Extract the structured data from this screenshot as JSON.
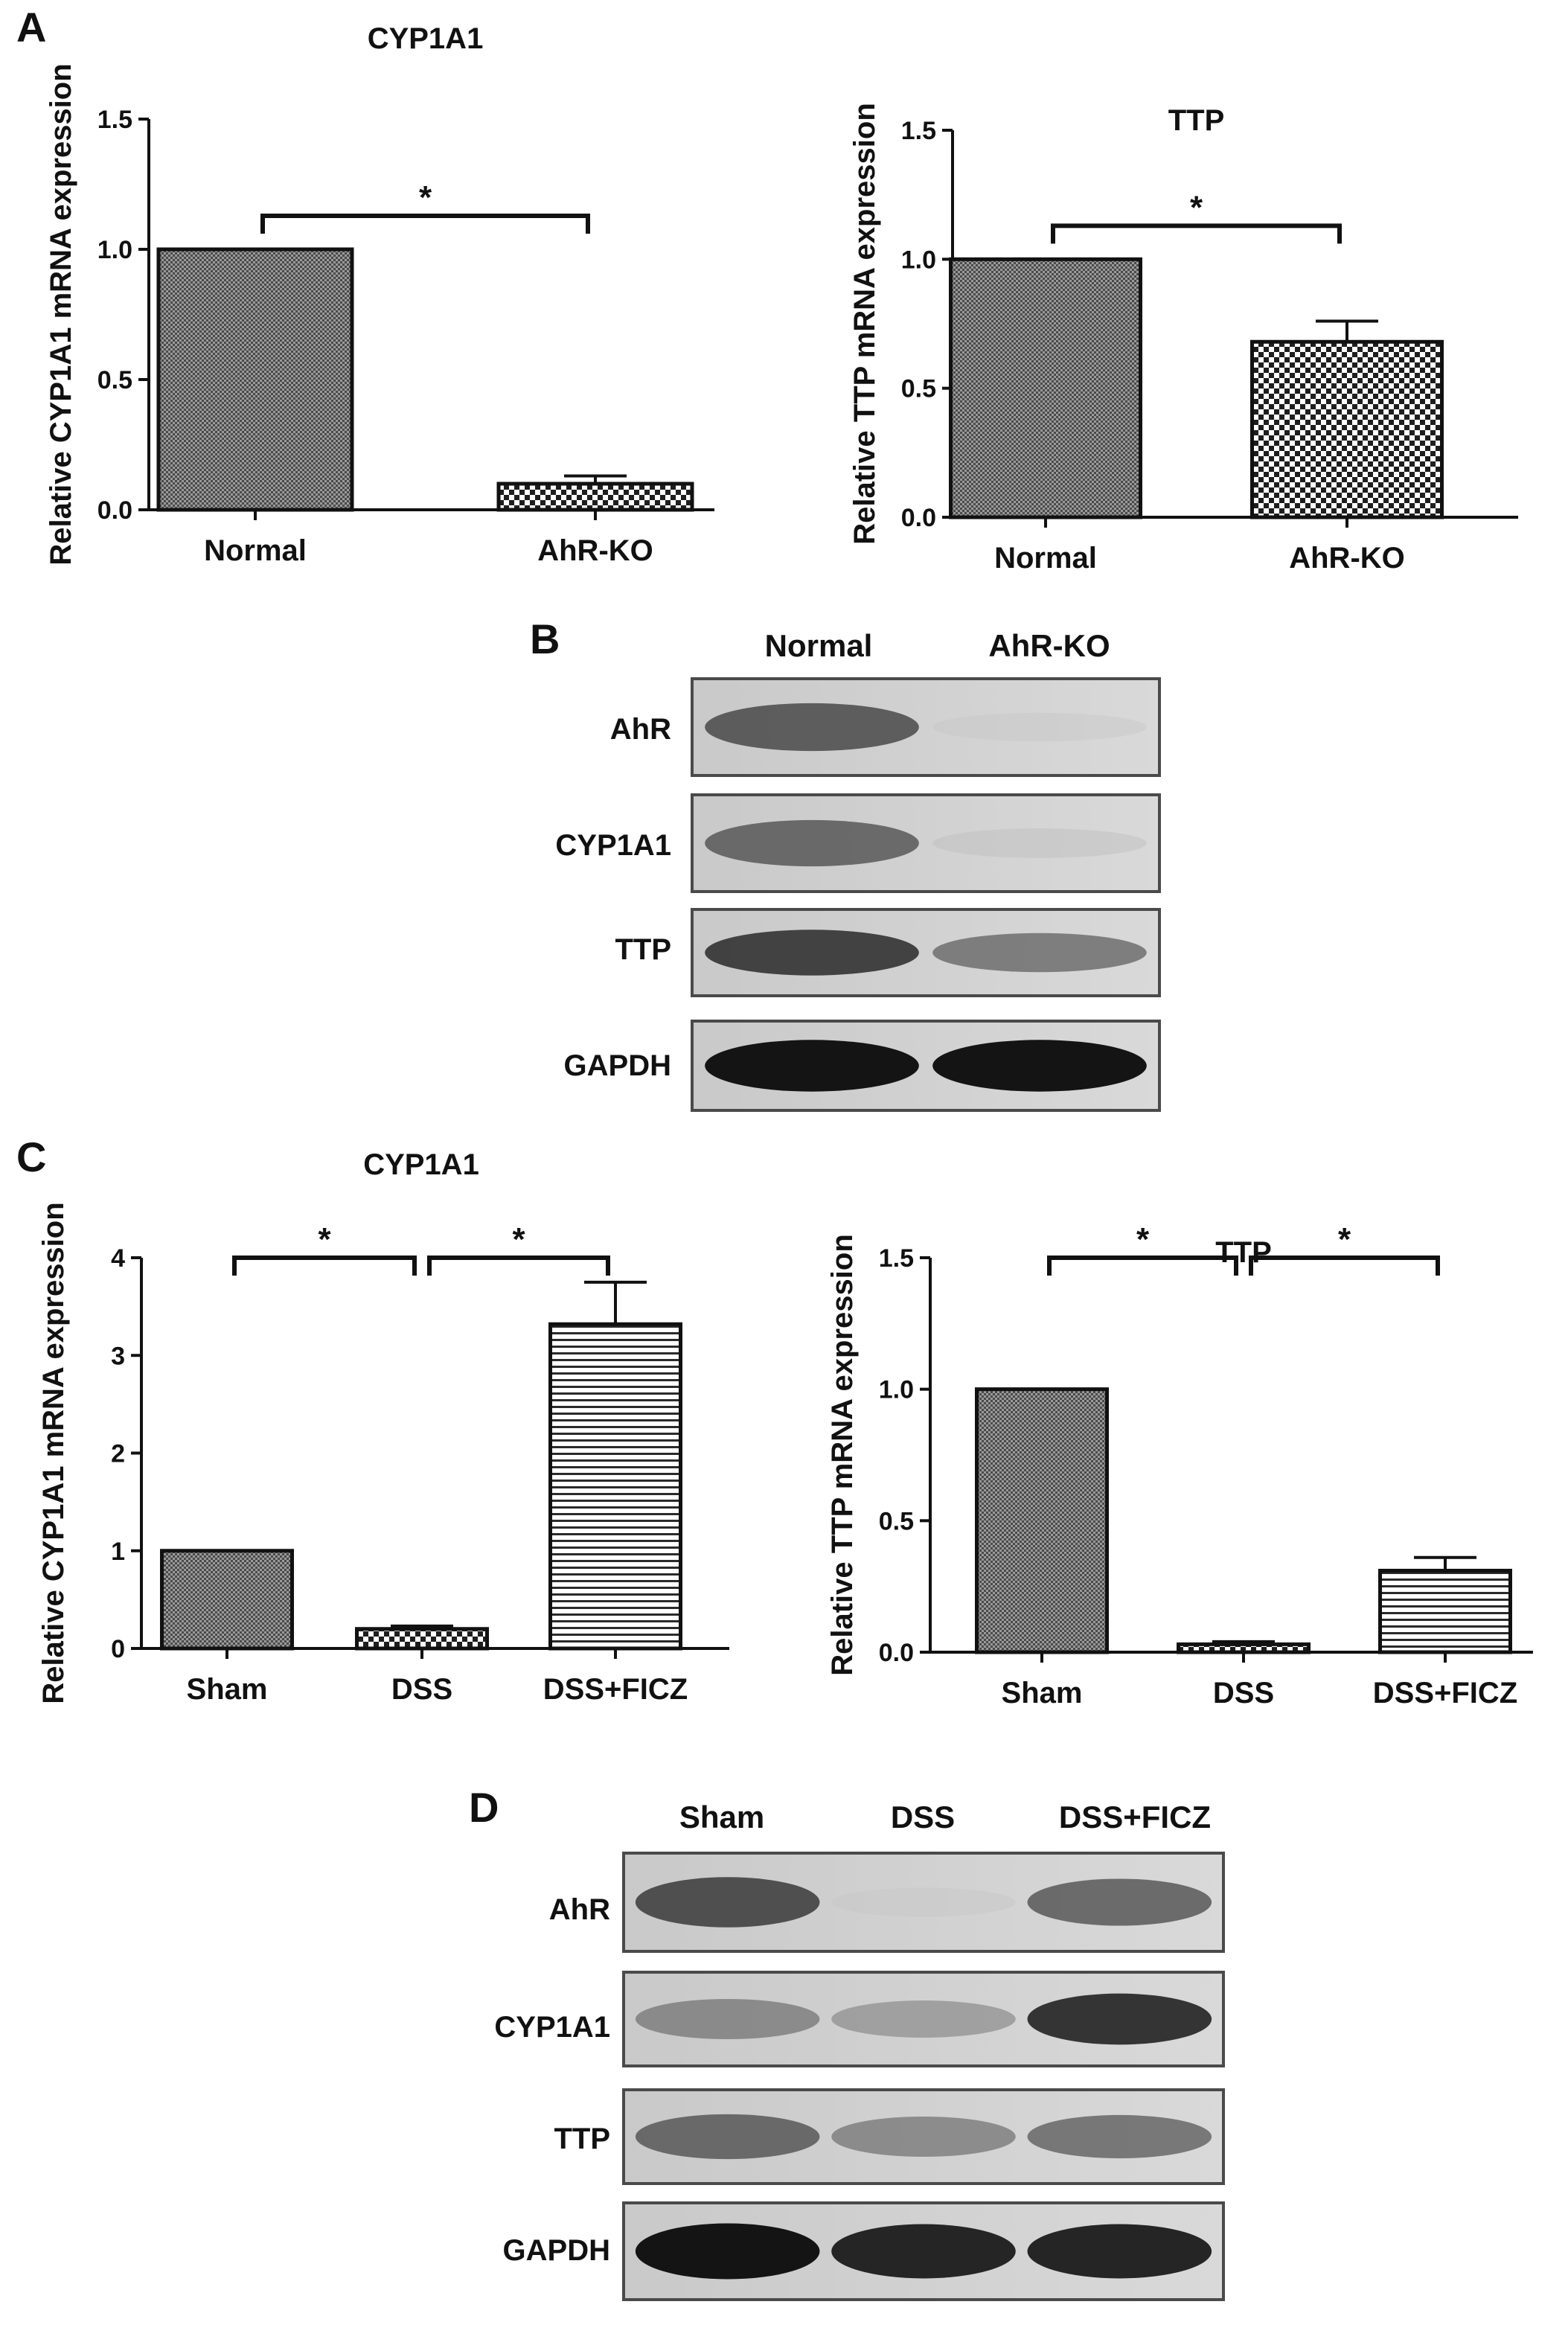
{
  "figure": {
    "panel_letters": [
      "A",
      "B",
      "C",
      "D"
    ]
  },
  "blot_b": {
    "lanes": [
      "Normal",
      "AhR-KO"
    ],
    "rows": [
      "AhR",
      "CYP1A1",
      "TTP",
      "GAPDH"
    ],
    "intensity": [
      [
        0.75,
        0.15
      ],
      [
        0.7,
        0.18
      ],
      [
        0.85,
        0.62
      ],
      [
        1.0,
        1.0
      ]
    ]
  },
  "blot_d": {
    "lanes": [
      "Sham",
      "DSS",
      "DSS+FICZ"
    ],
    "rows": [
      "AhR",
      "CYP1A1",
      "TTP",
      "GAPDH"
    ],
    "intensity": [
      [
        0.8,
        0.15,
        0.7
      ],
      [
        0.55,
        0.45,
        0.9
      ],
      [
        0.7,
        0.55,
        0.65
      ],
      [
        1.0,
        0.95,
        0.95
      ]
    ]
  },
  "chart_data": [
    {
      "type": "bar",
      "panel": "A",
      "title": "CYP1A1",
      "ylabel": "Relative CYP1A1 mRNA expression",
      "categories": [
        "Normal",
        "AhR-KO"
      ],
      "values": [
        1.0,
        0.1
      ],
      "errors": [
        0,
        0.03
      ],
      "patterns": [
        "fine",
        "check"
      ],
      "ylim": [
        0,
        1.5
      ],
      "yticks": [
        "0.0",
        "0.5",
        "1.0",
        "1.5"
      ],
      "significance": [
        {
          "from": 0,
          "to": 1,
          "label": "*"
        }
      ]
    },
    {
      "type": "bar",
      "panel": "A",
      "title": "TTP",
      "ylabel": "Relative TTP mRNA expression",
      "categories": [
        "Normal",
        "AhR-KO"
      ],
      "values": [
        1.0,
        0.68
      ],
      "errors": [
        0,
        0.08
      ],
      "patterns": [
        "fine",
        "check"
      ],
      "ylim": [
        0,
        1.5
      ],
      "yticks": [
        "0.0",
        "0.5",
        "1.0",
        "1.5"
      ],
      "significance": [
        {
          "from": 0,
          "to": 1,
          "label": "*"
        }
      ]
    },
    {
      "type": "bar",
      "panel": "C",
      "title": "CYP1A1",
      "ylabel": "Relative CYP1A1 mRNA expression",
      "categories": [
        "Sham",
        "DSS",
        "DSS+FICZ"
      ],
      "values": [
        1.0,
        0.2,
        3.32
      ],
      "errors": [
        0,
        0.03,
        0.43
      ],
      "patterns": [
        "fine",
        "check",
        "hlines"
      ],
      "ylim": [
        0,
        4
      ],
      "yticks": [
        "0",
        "1",
        "2",
        "3",
        "4"
      ],
      "significance": [
        {
          "from": 0,
          "to": 1,
          "label": "*"
        },
        {
          "from": 1,
          "to": 2,
          "label": "*"
        }
      ]
    },
    {
      "type": "bar",
      "panel": "C",
      "title": "TTP",
      "ylabel": "Relative TTP mRNA expression",
      "categories": [
        "Sham",
        "DSS",
        "DSS+FICZ"
      ],
      "values": [
        1.0,
        0.03,
        0.31
      ],
      "errors": [
        0,
        0.01,
        0.05
      ],
      "patterns": [
        "fine",
        "check",
        "hlines"
      ],
      "ylim": [
        0,
        1.5
      ],
      "yticks": [
        "0.0",
        "0.5",
        "1.0",
        "1.5"
      ],
      "significance": [
        {
          "from": 0,
          "to": 1,
          "label": "*"
        },
        {
          "from": 1,
          "to": 2,
          "label": "*"
        }
      ]
    }
  ]
}
